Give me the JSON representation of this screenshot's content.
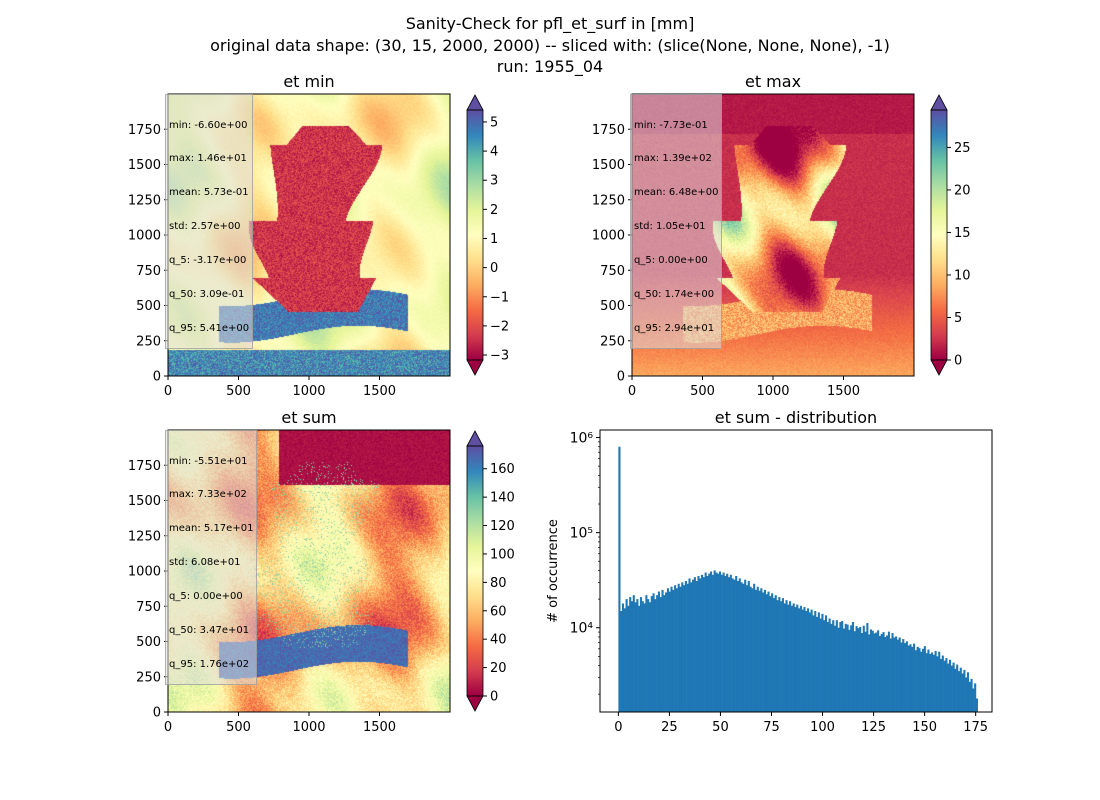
{
  "figure": {
    "title_lines": [
      "Sanity-Check for pfl_et_surf in [mm]",
      "original data shape: (30, 15, 2000, 2000) -- sliced with: (slice(None, None, None), -1)",
      "run: 1955_04"
    ]
  },
  "colors": {
    "hist_bar": "#1f77b4",
    "cmap_low": "#9e0142",
    "cmap_mid": "#ffffbf",
    "cmap_high": "#5e4fa2"
  },
  "panels": [
    {
      "title": "et min",
      "stats": [
        "min: -6.60e+00",
        "max: 1.46e+01",
        "mean: 5.73e-01",
        "std: 2.57e+00",
        "q_5: -3.17e+00",
        "q_50: 3.09e-01",
        "q_95: 5.41e+00"
      ],
      "colorbar": {
        "vmin": -3.17,
        "vmax": 5.41,
        "ticks": [
          "5",
          "4",
          "3",
          "2",
          "1",
          "0",
          "−1",
          "−2",
          "−3"
        ]
      }
    },
    {
      "title": "et max",
      "stats": [
        "min: -7.73e-01",
        "max: 1.39e+02",
        "mean: 6.48e+00",
        "std: 1.05e+01",
        "q_5: 0.00e+00",
        "q_50: 1.74e+00",
        "q_95: 2.94e+01"
      ],
      "colorbar": {
        "vmin": 0,
        "vmax": 29.4,
        "ticks": [
          "25",
          "20",
          "15",
          "10",
          "5",
          "0"
        ]
      }
    },
    {
      "title": "et sum",
      "stats": [
        "min: -5.51e+01",
        "max: 7.33e+02",
        "mean: 5.17e+01",
        "std: 6.08e+01",
        "q_5: 0.00e+00",
        "q_50: 3.47e+01",
        "q_95: 1.76e+02"
      ],
      "colorbar": {
        "vmin": 0,
        "vmax": 176,
        "ticks": [
          "160",
          "140",
          "120",
          "100",
          "80",
          "60",
          "40",
          "20",
          "0"
        ]
      }
    }
  ],
  "map_axes": {
    "x_ticks": [
      "0",
      "500",
      "1000",
      "1500"
    ],
    "y_ticks": [
      "0",
      "250",
      "500",
      "750",
      "1000",
      "1250",
      "1500",
      "1750"
    ],
    "xlim": [
      0,
      2000
    ],
    "ylim": [
      0,
      2000
    ]
  },
  "chart_data": {
    "type": "bar",
    "title": "et sum - distribution",
    "xlabel": "",
    "ylabel": "# of occurrence",
    "yscale": "log",
    "xlim": [
      -9,
      183
    ],
    "ylim": [
      1300,
      1200000
    ],
    "x_ticks": [
      "0",
      "25",
      "50",
      "75",
      "100",
      "125",
      "150",
      "175"
    ],
    "y_ticks": [
      "10⁴",
      "10⁵",
      "10⁶"
    ],
    "bin_range": [
      0,
      176
    ],
    "bin_count": 200,
    "values": [
      800000,
      15000,
      18000,
      16000,
      20000,
      17000,
      21000,
      19000,
      22000,
      18500,
      20000,
      17000,
      21000,
      19000,
      18000,
      22000,
      20000,
      18500,
      21500,
      23000,
      20000,
      22000,
      24000,
      21000,
      25000,
      22000,
      23500,
      26000,
      24000,
      27000,
      25000,
      28000,
      26000,
      29000,
      27000,
      30000,
      28000,
      31000,
      29000,
      33000,
      30000,
      32000,
      34000,
      31000,
      35000,
      33000,
      36000,
      34000,
      38000,
      35000,
      37000,
      39000,
      36000,
      40000,
      38000,
      37000,
      39000,
      36000,
      38000,
      35000,
      37000,
      34000,
      36000,
      33000,
      32000,
      35000,
      31000,
      33000,
      30000,
      29000,
      32000,
      28000,
      31000,
      27000,
      26000,
      29000,
      25000,
      27000,
      24500,
      26000,
      23500,
      25000,
      22500,
      24000,
      21500,
      23000,
      20500,
      22000,
      19500,
      21000,
      19000,
      20500,
      18000,
      19500,
      17500,
      19000,
      17000,
      18000,
      16500,
      17500,
      16000,
      17000,
      15500,
      16500,
      15000,
      16000,
      14500,
      15500,
      13500,
      15000,
      13000,
      14500,
      12500,
      14000,
      12000,
      13500,
      11500,
      12500,
      11000,
      12000,
      10500,
      12000,
      10000,
      11500,
      11800,
      9800,
      11000,
      10800,
      9500,
      10600,
      11500,
      9200,
      10400,
      9900,
      10200,
      8800,
      10500,
      9100,
      11200,
      8500,
      9600,
      9300,
      8700,
      8900,
      9400,
      8200,
      8600,
      9000,
      8000,
      8300,
      9100,
      7700,
      8800,
      7900,
      8100,
      7500,
      7900,
      7000,
      7600,
      6900,
      7200,
      6500,
      6700,
      6300,
      6800,
      5800,
      6300,
      6100,
      5600,
      6000,
      6400,
      5400,
      5900,
      5300,
      5500,
      5200,
      5700,
      5000,
      5600,
      4700,
      5100,
      4500,
      4800,
      4200,
      4600,
      4000,
      4300,
      3700,
      4100,
      3500,
      3800,
      3300,
      3600,
      3000,
      3400,
      2700,
      2900,
      2300,
      2600,
      1800
    ]
  }
}
